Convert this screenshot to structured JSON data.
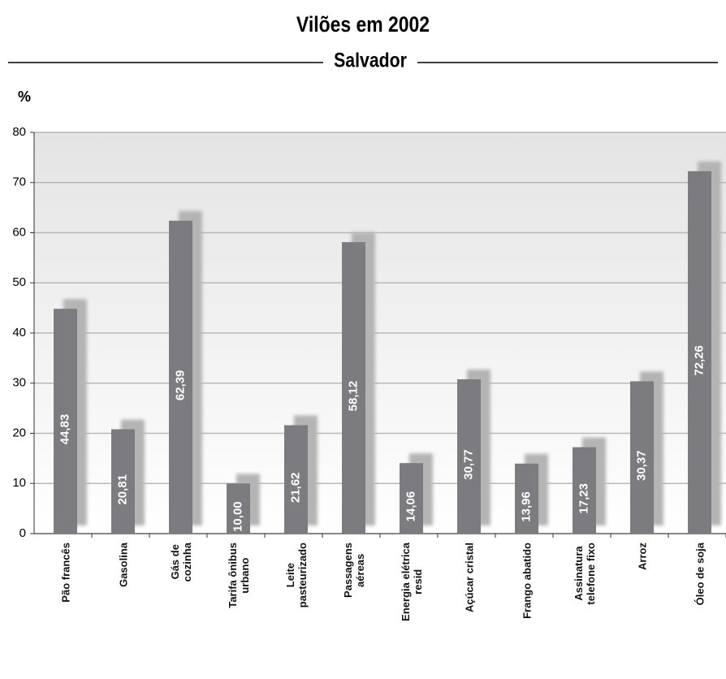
{
  "chart_data": {
    "type": "bar",
    "title": "Vilões em 2002",
    "subtitle": "Salvador",
    "y_label": "%",
    "categories": [
      "Pão francês",
      "Gasolina",
      "Gás de\ncozinha",
      "Tarifa ônibus\nurbano",
      "Leite\npasteurizado",
      "Passagens\naéreas",
      "Energia elétrica\nresid",
      "Açúcar cristal",
      "Frango abatido",
      "Assinatura\ntelefone fixo",
      "Arroz",
      "Óleo de soja"
    ],
    "values": [
      44.83,
      20.81,
      62.39,
      10.0,
      21.62,
      58.12,
      14.06,
      30.77,
      13.96,
      17.23,
      30.37,
      72.26
    ],
    "value_labels": [
      "44,83",
      "20,81",
      "62,39",
      "10,00",
      "21,62",
      "58,12",
      "14,06",
      "30,77",
      "13,96",
      "17,23",
      "30,37",
      "72,26"
    ],
    "color": "#7b7b80",
    "shadow_color": "#b4b4b4",
    "ylim": [
      0,
      80
    ],
    "yticks": [
      0,
      10,
      20,
      30,
      40,
      50,
      60,
      70,
      80
    ],
    "grid": true
  }
}
